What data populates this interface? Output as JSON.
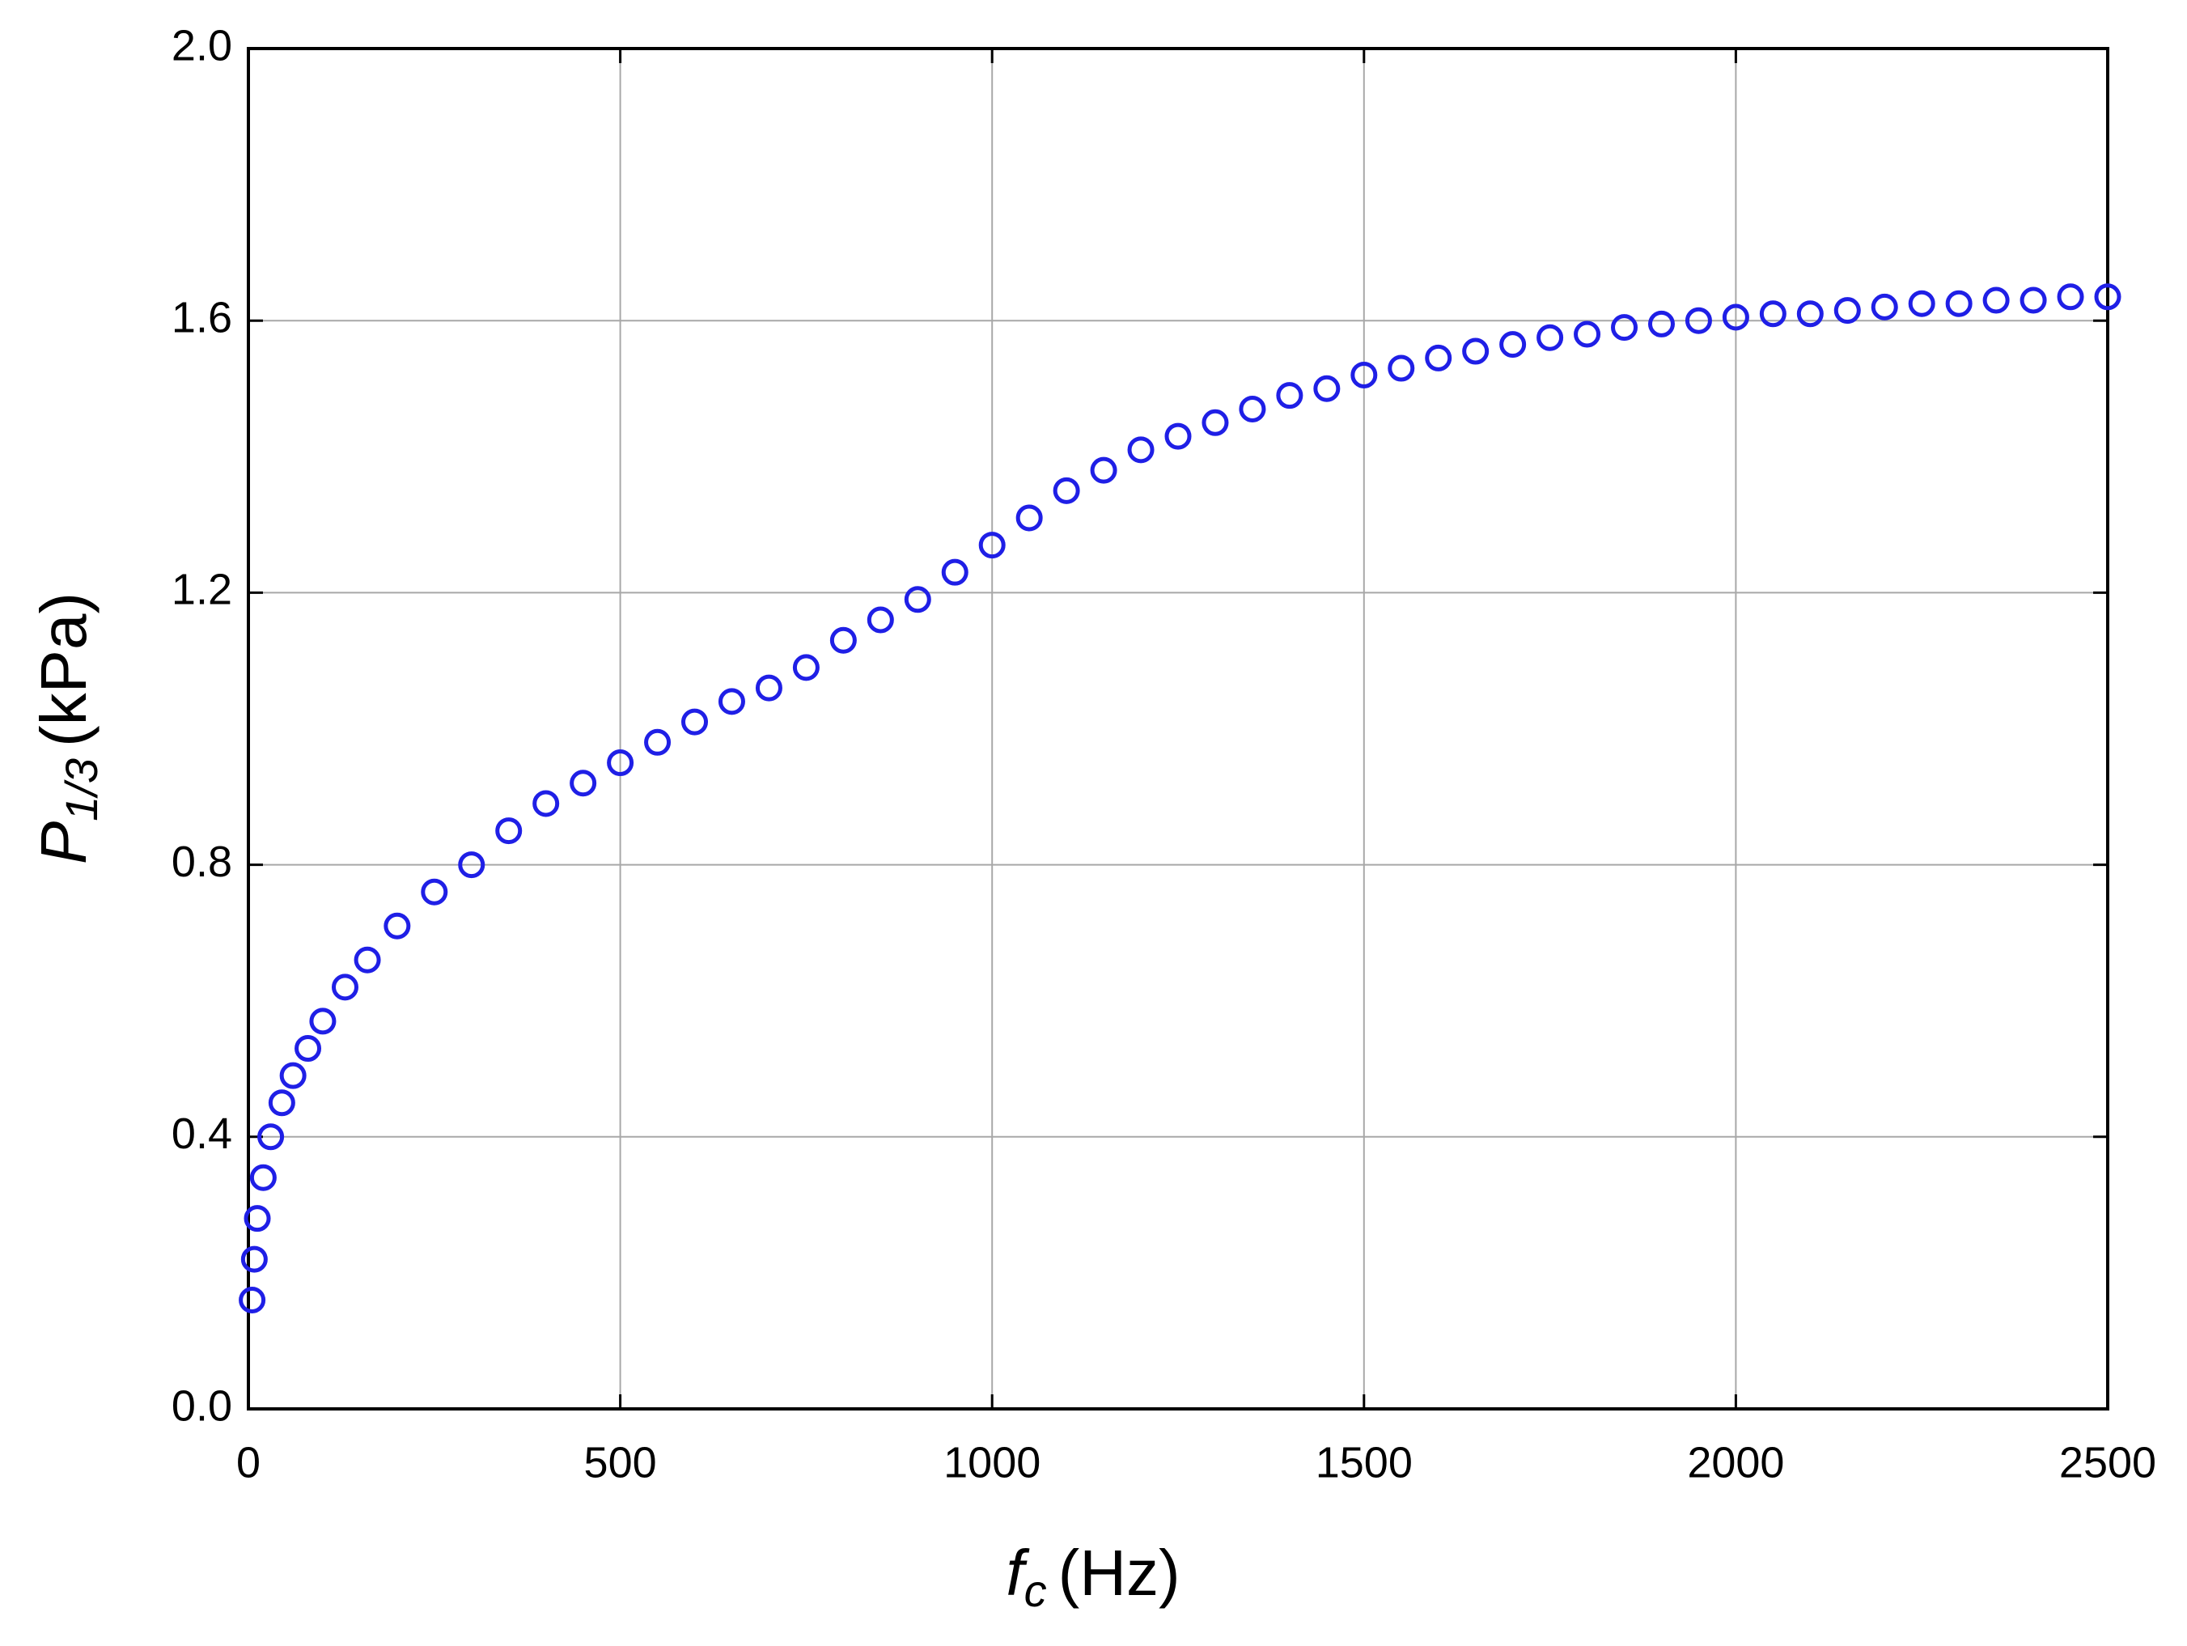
{
  "chart_data": {
    "type": "scatter",
    "xlabel": {
      "symbol": "f",
      "subscript": "c",
      "unit": "(Hz)"
    },
    "ylabel": {
      "symbol": "P",
      "subscript": "1/3",
      "unit": "(kPa)"
    },
    "x": [
      5,
      8,
      12,
      20,
      30,
      45,
      60,
      80,
      100,
      130,
      160,
      200,
      250,
      300,
      350,
      400,
      450,
      500,
      550,
      600,
      650,
      700,
      750,
      800,
      850,
      900,
      950,
      1000,
      1050,
      1100,
      1150,
      1200,
      1250,
      1300,
      1350,
      1400,
      1450,
      1500,
      1550,
      1600,
      1650,
      1700,
      1750,
      1800,
      1850,
      1900,
      1950,
      2000,
      2050,
      2100,
      2150,
      2200,
      2250,
      2300,
      2350,
      2400,
      2450,
      2500
    ],
    "series": [
      {
        "color": "#1f1fe6",
        "values": [
          0.16,
          0.22,
          0.28,
          0.34,
          0.4,
          0.45,
          0.49,
          0.53,
          0.57,
          0.62,
          0.66,
          0.71,
          0.76,
          0.8,
          0.85,
          0.89,
          0.92,
          0.95,
          0.98,
          1.01,
          1.04,
          1.06,
          1.09,
          1.13,
          1.16,
          1.19,
          1.23,
          1.27,
          1.31,
          1.35,
          1.38,
          1.41,
          1.43,
          1.45,
          1.47,
          1.49,
          1.5,
          1.52,
          1.53,
          1.545,
          1.555,
          1.565,
          1.575,
          1.58,
          1.59,
          1.595,
          1.6,
          1.605,
          1.61,
          1.61,
          1.615,
          1.62,
          1.625,
          1.625,
          1.63,
          1.63,
          1.635,
          1.635
        ]
      }
    ],
    "xlim": [
      0,
      2500
    ],
    "xticks": [
      0,
      500,
      1000,
      1500,
      2000,
      2500
    ],
    "ylim": [
      0,
      2
    ],
    "yticks": [
      {
        "value": 0,
        "label": "0.0"
      },
      0.4,
      0.8,
      1.2,
      1.6,
      {
        "value": 2,
        "label": "2.0"
      }
    ],
    "grid": true
  }
}
